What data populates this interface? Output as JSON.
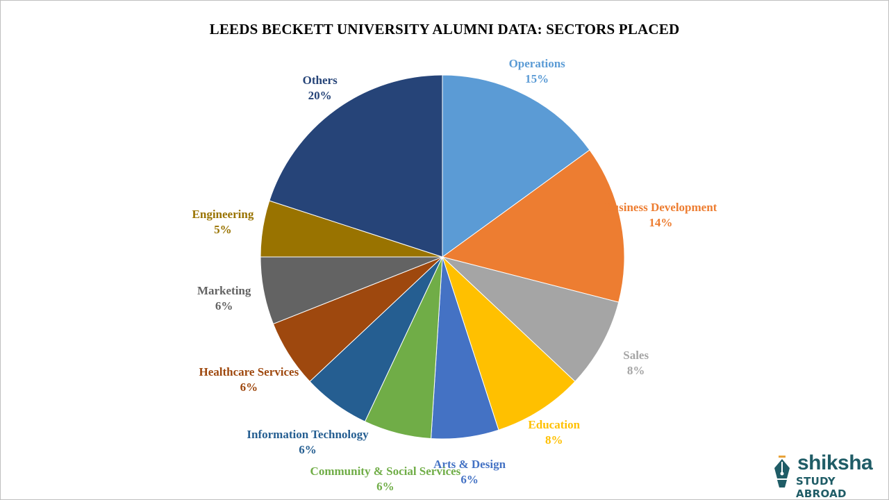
{
  "chart_data": {
    "type": "pie",
    "title": "LEEDS BECKETT UNIVERSITY ALUMNI DATA: SECTORS PLACED",
    "slices": [
      {
        "label": "Operations",
        "value": 15,
        "display": "15%",
        "color": "#5b9bd5"
      },
      {
        "label": "Business Development",
        "value": 14,
        "display": "14%",
        "color": "#ed7d31"
      },
      {
        "label": "Sales",
        "value": 8,
        "display": "8%",
        "color": "#a5a5a5"
      },
      {
        "label": "Education",
        "value": 8,
        "display": "8%",
        "color": "#ffc000"
      },
      {
        "label": "Arts & Design",
        "value": 6,
        "display": "6%",
        "color": "#4472c4"
      },
      {
        "label": "Community & Social Services",
        "value": 6,
        "display": "6%",
        "color": "#70ad47"
      },
      {
        "label": "Information Technology",
        "value": 6,
        "display": "6%",
        "color": "#255e91"
      },
      {
        "label": "Healthcare Services",
        "value": 6,
        "display": "6%",
        "color": "#9e480e"
      },
      {
        "label": "Marketing",
        "value": 6,
        "display": "6%",
        "color": "#636363"
      },
      {
        "label": "Engineering",
        "value": 5,
        "display": "5%",
        "color": "#997300"
      },
      {
        "label": "Others",
        "value": 20,
        "display": "20%",
        "color": "#264478"
      }
    ],
    "label_colors": [
      "#5b9bd5",
      "#ed7d31",
      "#a5a5a5",
      "#ffc000",
      "#4472c4",
      "#70ad47",
      "#255e91",
      "#9e480e",
      "#636363",
      "#997300",
      "#264478"
    ],
    "start": "12 o'clock",
    "direction": "clockwise",
    "legend": "none"
  },
  "logo": {
    "name": "shiksha",
    "sub": "STUDY ABROAD",
    "color": "#1f5c66"
  }
}
